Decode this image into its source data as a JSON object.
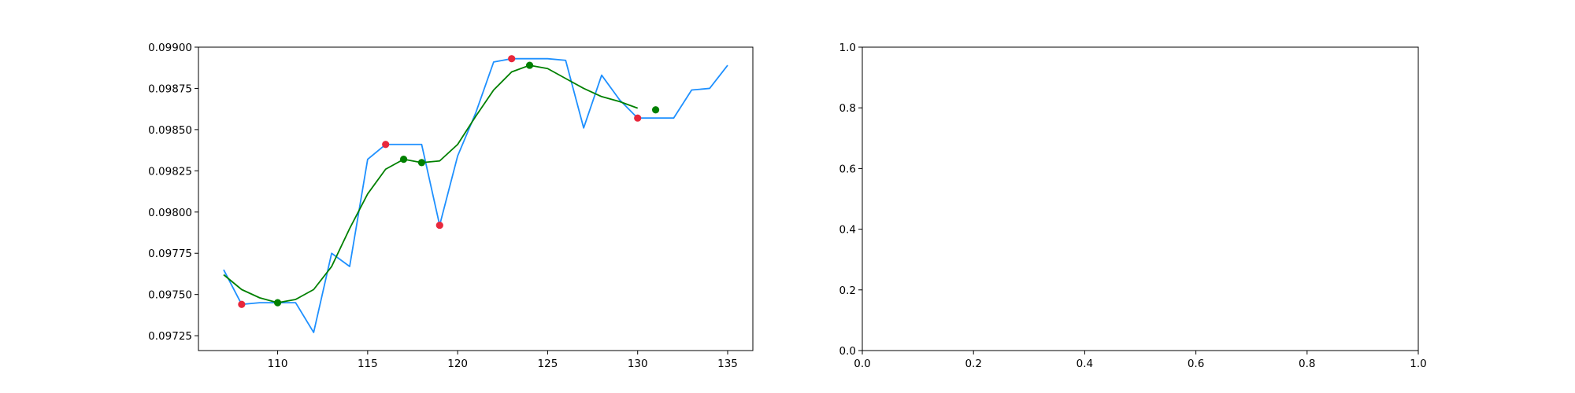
{
  "chart_data": [
    {
      "type": "line",
      "title": "",
      "xlabel": "",
      "ylabel": "",
      "xlim": [
        105.6,
        136.4
      ],
      "ylim": [
        0.09716,
        0.099
      ],
      "xticks": [
        110,
        115,
        120,
        125,
        130,
        135
      ],
      "xtick_labels": [
        "110",
        "115",
        "120",
        "125",
        "130",
        "135"
      ],
      "yticks": [
        0.09725,
        0.0975,
        0.09775,
        0.098,
        0.09825,
        0.0985,
        0.09875,
        0.099
      ],
      "ytick_labels": [
        "0.09725",
        "0.09750",
        "0.09775",
        "0.09800",
        "0.09825",
        "0.09850",
        "0.09875",
        "0.09900"
      ],
      "grid": false,
      "series": [
        {
          "kind": "line",
          "color": "#1e90ff",
          "x": [
            107,
            108,
            109,
            110,
            111,
            112,
            113,
            114,
            115,
            116,
            117,
            118,
            119,
            120,
            121,
            122,
            123,
            124,
            125,
            126,
            127,
            128,
            129,
            130,
            131,
            132,
            133,
            134,
            135
          ],
          "y": [
            0.09765,
            0.09744,
            0.09745,
            0.09745,
            0.09745,
            0.09727,
            0.09775,
            0.09767,
            0.09832,
            0.09841,
            0.09841,
            0.09841,
            0.09792,
            0.09834,
            0.0986,
            0.09891,
            0.09893,
            0.09893,
            0.09893,
            0.09892,
            0.09851,
            0.09883,
            0.09868,
            0.09857,
            0.09857,
            0.09857,
            0.09874,
            0.09875,
            0.09889
          ]
        },
        {
          "kind": "line",
          "color": "#008000",
          "x": [
            107,
            108,
            109,
            110,
            111,
            112,
            113,
            114,
            115,
            116,
            117,
            118,
            119,
            120,
            121,
            122,
            123,
            124,
            125,
            126,
            127,
            128,
            129,
            130
          ],
          "y": [
            0.09762,
            0.09753,
            0.09748,
            0.09745,
            0.09747,
            0.09753,
            0.09767,
            0.0979,
            0.09811,
            0.09826,
            0.09832,
            0.0983,
            0.09831,
            0.09841,
            0.09858,
            0.09874,
            0.09885,
            0.09889,
            0.09887,
            0.09881,
            0.09875,
            0.0987,
            0.09867,
            0.09863
          ]
        },
        {
          "kind": "scatter",
          "color": "#e8283c",
          "x": [
            108,
            116,
            119,
            123,
            130
          ],
          "y": [
            0.09744,
            0.09841,
            0.09792,
            0.09893,
            0.09857
          ]
        },
        {
          "kind": "scatter",
          "color": "#008000",
          "x": [
            110,
            117,
            118,
            124,
            131
          ],
          "y": [
            0.09745,
            0.09832,
            0.0983,
            0.09889,
            0.09862
          ]
        }
      ]
    },
    {
      "type": "line",
      "title": "",
      "xlabel": "",
      "ylabel": "",
      "xlim": [
        0.0,
        1.0
      ],
      "ylim": [
        0.0,
        1.0
      ],
      "xticks": [
        0.0,
        0.2,
        0.4,
        0.6,
        0.8,
        1.0
      ],
      "xtick_labels": [
        "0.0",
        "0.2",
        "0.4",
        "0.6",
        "0.8",
        "1.0"
      ],
      "yticks": [
        0.0,
        0.2,
        0.4,
        0.6,
        0.8,
        1.0
      ],
      "ytick_labels": [
        "0.0",
        "0.2",
        "0.4",
        "0.6",
        "0.8",
        "1.0"
      ],
      "grid": false,
      "series": []
    }
  ]
}
